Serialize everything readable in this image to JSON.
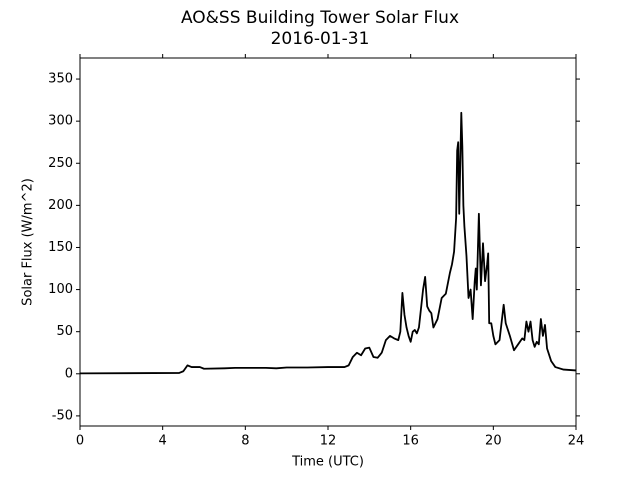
{
  "chart_data": {
    "type": "line",
    "title": "AO&SS Building Tower Solar Flux",
    "subtitle": "2016-01-31",
    "x_label": "Time (UTC)",
    "y_label": "Solar Flux (W/m^2)",
    "color": "#000000",
    "x": [
      0,
      4.8,
      5.0,
      5.2,
      5.4,
      5.8,
      6.0,
      7.0,
      7.5,
      9,
      9.5,
      10,
      11,
      12,
      12.8,
      13,
      13.2,
      13.4,
      13.6,
      13.8,
      14.0,
      14.2,
      14.4,
      14.6,
      14.8,
      15.0,
      15.2,
      15.4,
      15.5,
      15.6,
      15.7,
      15.8,
      15.9,
      16.0,
      16.1,
      16.2,
      16.3,
      16.4,
      16.6,
      16.7,
      16.8,
      16.9,
      17.0,
      17.1,
      17.3,
      17.5,
      17.7,
      17.9,
      18.0,
      18.1,
      18.2,
      18.25,
      18.3,
      18.35,
      18.4,
      18.45,
      18.5,
      18.55,
      18.6,
      18.7,
      18.8,
      18.9,
      19.0,
      19.1,
      19.15,
      19.2,
      19.3,
      19.4,
      19.5,
      19.6,
      19.7,
      19.75,
      19.8,
      19.9,
      20.0,
      20.1,
      20.3,
      20.5,
      20.6,
      20.8,
      21.0,
      21.2,
      21.4,
      21.5,
      21.6,
      21.7,
      21.8,
      21.9,
      22.0,
      22.1,
      22.2,
      22.3,
      22.4,
      22.5,
      22.6,
      22.8,
      23.0,
      23.4,
      24
    ],
    "values": [
      0.5,
      1,
      3,
      10,
      8,
      8,
      6,
      6.5,
      7,
      7,
      6.5,
      7.5,
      7.5,
      8,
      8,
      10,
      20,
      25,
      22,
      30,
      31,
      20,
      19,
      25,
      40,
      45,
      42,
      40,
      50,
      96,
      70,
      55,
      45,
      38,
      50,
      52,
      48,
      55,
      100,
      115,
      80,
      75,
      72,
      55,
      65,
      90,
      95,
      120,
      130,
      145,
      185,
      265,
      275,
      190,
      250,
      310,
      270,
      200,
      175,
      140,
      90,
      100,
      65,
      110,
      125,
      100,
      190,
      105,
      155,
      110,
      130,
      143,
      60,
      60,
      45,
      35,
      40,
      82,
      60,
      45,
      28,
      35,
      42,
      40,
      62,
      50,
      62,
      40,
      32,
      38,
      35,
      65,
      45,
      58,
      30,
      15,
      8,
      5,
      4
    ],
    "xlim": [
      0,
      24
    ],
    "xticks": [
      0,
      4,
      8,
      12,
      16,
      20,
      24
    ],
    "ylim": [
      -62,
      375
    ],
    "yticks": [
      -50,
      0,
      50,
      100,
      150,
      200,
      250,
      300,
      350
    ]
  }
}
